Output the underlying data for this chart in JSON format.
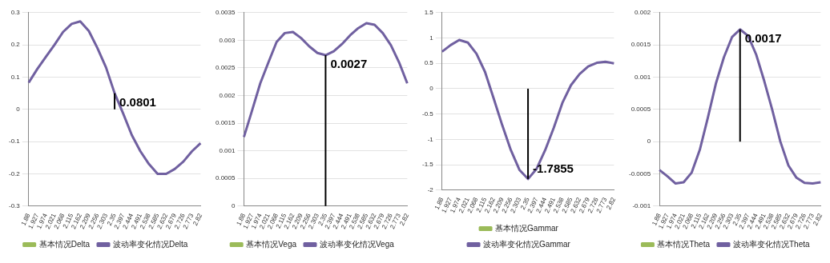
{
  "chart_data": [
    {
      "type": "line",
      "categories": [
        "1.88",
        "1.927",
        "1.974",
        "2.021",
        "2.068",
        "2.115",
        "2.162",
        "2.209",
        "2.256",
        "2.303",
        "2.35",
        "2.397",
        "2.444",
        "2.491",
        "2.538",
        "2.585",
        "2.632",
        "2.679",
        "2.726",
        "2.773",
        "2.82"
      ],
      "series": [
        {
          "name": "基本情况Delta",
          "color": "#9bbb59",
          "values": [
            null,
            null,
            null,
            null,
            null,
            null,
            null,
            null,
            null,
            null,
            null,
            null,
            null,
            null,
            null,
            null,
            null,
            null,
            null,
            null,
            null
          ]
        },
        {
          "name": "波动率变化情况Delta",
          "color": "#7060a0",
          "values": [
            0.083,
            0.125,
            0.163,
            0.2,
            0.24,
            0.265,
            0.273,
            0.243,
            0.19,
            0.13,
            0.05,
            -0.013,
            -0.08,
            -0.13,
            -0.17,
            -0.2,
            -0.2,
            -0.185,
            -0.162,
            -0.13,
            -0.105
          ]
        }
      ],
      "ylim": [
        -0.3,
        0.3
      ],
      "yticks": [
        -0.3,
        -0.2,
        -0.1,
        0,
        0.1,
        0.2,
        0.3
      ],
      "grid": "y",
      "legend": "bottom",
      "annotations": [
        {
          "text": "0.0801",
          "x": "2.35",
          "y": 0.05
        }
      ]
    },
    {
      "type": "line",
      "categories": [
        "1.88",
        "1.927",
        "1.974",
        "2.021",
        "2.068",
        "2.115",
        "2.162",
        "2.209",
        "2.256",
        "2.303",
        "2.35",
        "2.397",
        "2.444",
        "2.491",
        "2.538",
        "2.585",
        "2.632",
        "2.679",
        "2.726",
        "2.773",
        "2.82"
      ],
      "series": [
        {
          "name": "基本情况Vega",
          "color": "#9bbb59",
          "values": [
            null,
            null,
            null,
            null,
            null,
            null,
            null,
            null,
            null,
            null,
            null,
            null,
            null,
            null,
            null,
            null,
            null,
            null,
            null,
            null,
            null
          ]
        },
        {
          "name": "波动率变化情况Vega",
          "color": "#7060a0",
          "values": [
            0.00125,
            0.00173,
            0.00222,
            0.0026,
            0.00297,
            0.00313,
            0.00315,
            0.00304,
            0.00289,
            0.00277,
            0.00273,
            0.0028,
            0.00293,
            0.00309,
            0.00322,
            0.00331,
            0.00328,
            0.00313,
            0.00291,
            0.0026,
            0.00222
          ]
        }
      ],
      "ylim": [
        0,
        0.0035
      ],
      "yticks": [
        0,
        0.0005,
        0.001,
        0.0015,
        0.002,
        0.0025,
        0.003,
        0.0035
      ],
      "grid": "y",
      "legend": "bottom",
      "annotations": [
        {
          "text": "0.0027",
          "x": "2.35",
          "y": 0.00273
        }
      ]
    },
    {
      "type": "line",
      "categories": [
        "1.88",
        "1.927",
        "1.974",
        "2.021",
        "2.068",
        "2.115",
        "2.162",
        "2.209",
        "2.256",
        "2.303",
        "2.35",
        "2.397",
        "2.444",
        "2.491",
        "2.538",
        "2.585",
        "2.632",
        "2.679",
        "2.726",
        "2.773",
        "2.82"
      ],
      "series": [
        {
          "name": "基本情况Gammar",
          "color": "#9bbb59",
          "values": [
            null,
            null,
            null,
            null,
            null,
            null,
            null,
            null,
            null,
            null,
            null,
            null,
            null,
            null,
            null,
            null,
            null,
            null,
            null,
            null,
            null
          ]
        },
        {
          "name": "波动率变化情况Gammar",
          "color": "#7060a0",
          "values": [
            0.73,
            0.86,
            0.96,
            0.91,
            0.69,
            0.33,
            -0.19,
            -0.72,
            -1.21,
            -1.6,
            -1.78,
            -1.58,
            -1.21,
            -0.77,
            -0.28,
            0.07,
            0.29,
            0.44,
            0.51,
            0.53,
            0.5
          ]
        }
      ],
      "ylim": [
        -2,
        1.5
      ],
      "yticks": [
        -2,
        -1.5,
        -1,
        -0.5,
        0,
        0.5,
        1,
        1.5
      ],
      "grid": "y",
      "legend": "bottom",
      "annotations": [
        {
          "text": "-1.7855",
          "x": "2.35",
          "y": -1.78
        }
      ]
    },
    {
      "type": "line",
      "categories": [
        "1.88",
        "1.927",
        "1.974",
        "2.021",
        "2.068",
        "2.115",
        "2.162",
        "2.209",
        "2.256",
        "2.303",
        "2.35",
        "2.397",
        "2.444",
        "2.491",
        "2.538",
        "2.585",
        "2.632",
        "2.679",
        "2.726",
        "2.773",
        "2.82"
      ],
      "series": [
        {
          "name": "基本情况Theta",
          "color": "#9bbb59",
          "values": [
            null,
            null,
            null,
            null,
            null,
            null,
            null,
            null,
            null,
            null,
            null,
            null,
            null,
            null,
            null,
            null,
            null,
            null,
            null,
            null,
            null
          ]
        },
        {
          "name": "波动率变化情况Theta",
          "color": "#7060a0",
          "values": [
            -0.00044,
            -0.00054,
            -0.00065,
            -0.00063,
            -0.00048,
            -0.00013,
            0.00037,
            0.0009,
            0.00131,
            0.00162,
            0.00174,
            0.00164,
            0.00135,
            0.00094,
            0.00049,
            0,
            -0.00037,
            -0.00056,
            -0.00064,
            -0.00065,
            -0.00063
          ]
        }
      ],
      "ylim": [
        -0.001,
        0.002
      ],
      "yticks": [
        -0.001,
        -0.0005,
        0,
        0.0005,
        0.001,
        0.0015,
        0.002
      ],
      "grid": "y",
      "legend": "bottom",
      "annotations": [
        {
          "text": "0.0017",
          "x": "2.35",
          "y": 0.00174
        }
      ]
    }
  ]
}
